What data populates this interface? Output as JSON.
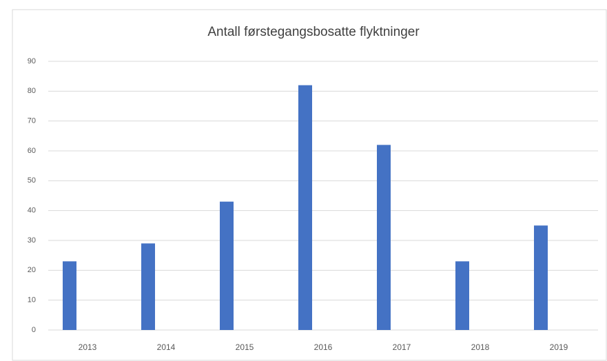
{
  "chart_data": {
    "type": "bar",
    "title": "Antall førstegangsbosatte flyktninger",
    "categories": [
      "2013",
      "2014",
      "2015",
      "2016",
      "2017",
      "2018",
      "2019"
    ],
    "values": [
      23,
      29,
      43,
      82,
      62,
      23,
      35
    ],
    "color": "#4472c4",
    "ylim": [
      0,
      90
    ],
    "yticks": [
      0,
      10,
      20,
      30,
      40,
      50,
      60,
      70,
      80,
      90
    ],
    "grid": true
  }
}
